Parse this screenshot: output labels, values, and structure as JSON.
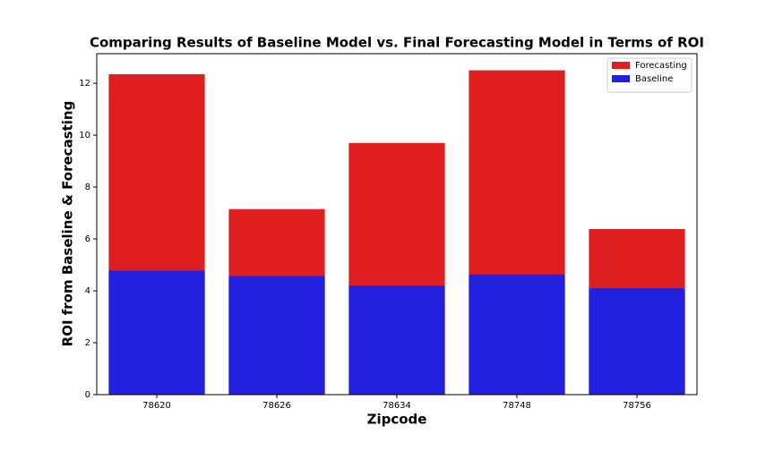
{
  "chart_data": {
    "type": "bar",
    "title": "Comparing Results of Baseline Model vs. Final Forecasting Model in Terms of ROI",
    "x_label": "Zipcode",
    "y_label": "ROI from Baseline & Forecasting",
    "categories": [
      "78620",
      "78626",
      "78634",
      "78748",
      "78756"
    ],
    "series": [
      {
        "name": "Forecasting",
        "color": "#df1f1f",
        "values": [
          12.35,
          7.15,
          9.7,
          12.5,
          6.38
        ]
      },
      {
        "name": "Baseline",
        "color": "#2121df",
        "values": [
          4.78,
          4.57,
          4.2,
          4.63,
          4.1
        ]
      }
    ],
    "ylim": [
      0,
      13.14
    ],
    "yticks": [
      0,
      2,
      4,
      6,
      8,
      10,
      12
    ],
    "legend": "upper right"
  }
}
